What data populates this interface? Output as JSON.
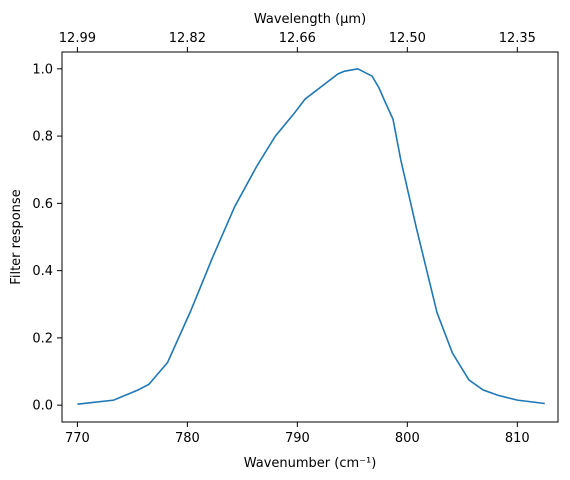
{
  "chart_data": {
    "type": "line",
    "xlabel": "Wavenumber (cm⁻¹)",
    "ylabel": "Filter response",
    "top_axis_label": "Wavelength (μm)",
    "xlim": [
      768.6,
      813.7
    ],
    "ylim": [
      -0.05,
      1.05
    ],
    "x_ticks": [
      770,
      780,
      790,
      800,
      810
    ],
    "y_ticks": [
      0.0,
      0.2,
      0.4,
      0.6,
      0.8,
      1.0
    ],
    "y_tick_labels": [
      "0.0",
      "0.2",
      "0.4",
      "0.6",
      "0.8",
      "1.0"
    ],
    "top_ticks": [
      {
        "label": "12.99",
        "at": 770.0
      },
      {
        "label": "12.82",
        "at": 780.0
      },
      {
        "label": "12.66",
        "at": 790.0
      },
      {
        "label": "12.50",
        "at": 800.0
      },
      {
        "label": "12.35",
        "at": 810.0
      }
    ],
    "line_color": "#1f77b4",
    "series": [
      {
        "x": [
          770.0,
          773.3,
          775.5,
          776.5,
          778.2,
          780.3,
          782.3,
          784.3,
          786.3,
          788.0,
          789.7,
          790.7,
          792.3,
          793.7,
          794.3,
          795.5,
          796.8,
          797.4,
          798.0,
          798.7,
          799.4,
          800.8,
          802.7,
          804.1,
          805.6,
          806.9,
          808.2,
          810.0,
          812.5
        ],
        "y": [
          0.003,
          0.015,
          0.045,
          0.062,
          0.127,
          0.28,
          0.44,
          0.59,
          0.71,
          0.8,
          0.867,
          0.91,
          0.95,
          0.985,
          0.993,
          1.0,
          0.978,
          0.945,
          0.9,
          0.85,
          0.73,
          0.53,
          0.275,
          0.155,
          0.075,
          0.045,
          0.03,
          0.015,
          0.005
        ]
      }
    ]
  }
}
